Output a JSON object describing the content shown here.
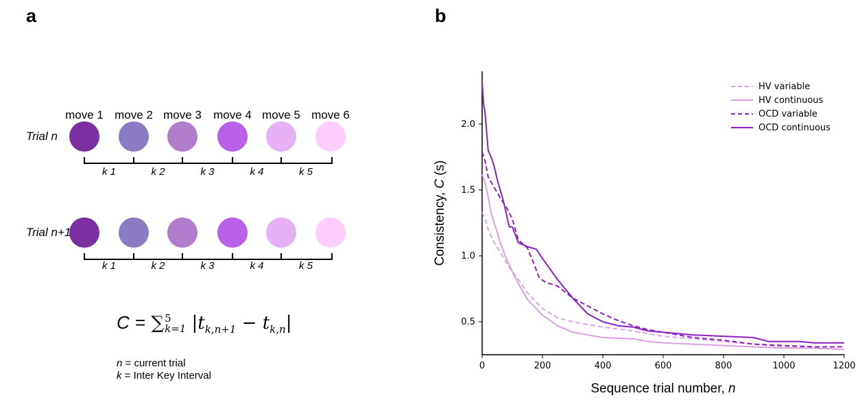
{
  "panel_a": {
    "letter": "a",
    "moves": [
      "move 1",
      "move 2",
      "move 3",
      "move 4",
      "move 5",
      "move 6"
    ],
    "move_colors": [
      "#7b2fa0",
      "#8b7bc4",
      "#b07ccc",
      "#b860e6",
      "#e5b0f6",
      "#fdcdfb"
    ],
    "trials": [
      "Trial n",
      "Trial n+1"
    ],
    "k_labels": [
      "k 1",
      "k 2",
      "k 3",
      "k 4",
      "k 5"
    ],
    "formula": {
      "lhs": "C",
      "eq": "=",
      "sum": "∑",
      "sup": "5",
      "sub": "k=1",
      "body": "|t",
      "sub1": "k,n+1",
      "minus": " − t",
      "sub2": "k,n",
      "end": "|"
    },
    "notes": [
      {
        "var": "n",
        "text": " = current trial"
      },
      {
        "var": "k",
        "text": " = Inter Key Interval"
      }
    ]
  },
  "panel_b": {
    "letter": "b"
  },
  "chart_data": {
    "type": "line",
    "xlabel": "Sequence trial number, ",
    "xlabel_var": "n",
    "ylabel": "Consistency, ",
    "ylabel_var": "C",
    "ylabel_unit": " (s)",
    "xlim": [
      0,
      1200
    ],
    "ylim": [
      0.25,
      2.4
    ],
    "xticks": [
      0,
      200,
      400,
      600,
      800,
      1000,
      1200
    ],
    "yticks": [
      0.5,
      1.0,
      1.5,
      2.0
    ],
    "grid": false,
    "legend_position": "top-right",
    "series": [
      {
        "name": "HV variable",
        "color": "#dca1e6",
        "dash": true,
        "x": [
          0,
          10,
          20,
          40,
          60,
          80,
          100,
          120,
          150,
          200,
          250,
          300,
          400,
          500,
          600,
          700,
          800,
          900,
          1000,
          1100,
          1200
        ],
        "y": [
          1.33,
          1.28,
          1.2,
          1.1,
          1.03,
          0.95,
          0.88,
          0.82,
          0.72,
          0.6,
          0.53,
          0.5,
          0.46,
          0.43,
          0.39,
          0.37,
          0.35,
          0.33,
          0.31,
          0.3,
          0.29
        ]
      },
      {
        "name": "HV continuous",
        "color": "#d8a0e0",
        "dash": false,
        "x": [
          0,
          10,
          20,
          30,
          40,
          50,
          60,
          80,
          100,
          120,
          150,
          200,
          250,
          300,
          350,
          400,
          500,
          550,
          600,
          700,
          800,
          900,
          1000,
          1100,
          1200
        ],
        "y": [
          1.62,
          1.55,
          1.45,
          1.32,
          1.25,
          1.18,
          1.1,
          0.98,
          0.88,
          0.79,
          0.67,
          0.55,
          0.47,
          0.42,
          0.4,
          0.38,
          0.37,
          0.35,
          0.34,
          0.33,
          0.32,
          0.31,
          0.3,
          0.3,
          0.29
        ]
      },
      {
        "name": "OCD variable",
        "color": "#8a1fc2",
        "dash": true,
        "x": [
          0,
          10,
          20,
          40,
          60,
          80,
          100,
          120,
          150,
          170,
          190,
          210,
          250,
          300,
          350,
          400,
          450,
          500,
          550,
          600,
          700,
          800,
          900,
          1000,
          1100,
          1200
        ],
        "y": [
          1.79,
          1.72,
          1.6,
          1.52,
          1.44,
          1.37,
          1.28,
          1.12,
          1.06,
          0.95,
          0.83,
          0.8,
          0.77,
          0.68,
          0.62,
          0.56,
          0.51,
          0.47,
          0.44,
          0.42,
          0.38,
          0.36,
          0.33,
          0.32,
          0.31,
          0.31
        ]
      },
      {
        "name": "OCD continuous",
        "color": "#8a1fc2",
        "dash": false,
        "x": [
          0,
          5,
          10,
          20,
          30,
          40,
          50,
          60,
          70,
          80,
          90,
          100,
          120,
          150,
          180,
          200,
          250,
          300,
          350,
          400,
          450,
          500,
          550,
          600,
          700,
          800,
          900,
          950,
          1000,
          1050,
          1100,
          1200
        ],
        "y": [
          2.32,
          2.15,
          2.08,
          1.8,
          1.75,
          1.68,
          1.58,
          1.5,
          1.42,
          1.32,
          1.22,
          1.22,
          1.1,
          1.07,
          1.05,
          0.98,
          0.82,
          0.68,
          0.56,
          0.5,
          0.47,
          0.46,
          0.43,
          0.42,
          0.4,
          0.39,
          0.38,
          0.35,
          0.35,
          0.35,
          0.34,
          0.34
        ]
      }
    ]
  }
}
